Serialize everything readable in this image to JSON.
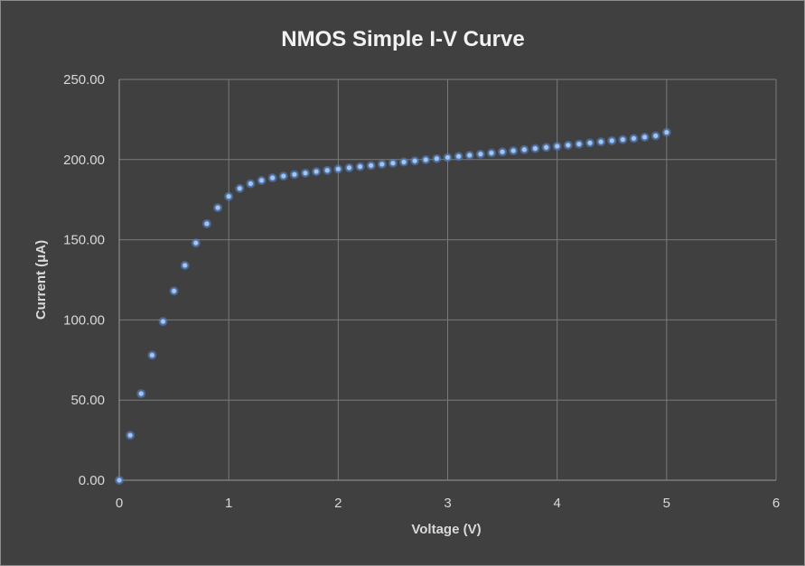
{
  "chart_data": {
    "type": "scatter",
    "title": "NMOS Simple I-V Curve",
    "xlabel": "Voltage (V)",
    "ylabel": "Current (μA)",
    "xlim": [
      0,
      6
    ],
    "ylim": [
      0,
      250
    ],
    "x_ticks": [
      "0",
      "1",
      "2",
      "3",
      "4",
      "5",
      "6"
    ],
    "y_ticks": [
      "0.00",
      "50.00",
      "100.00",
      "150.00",
      "200.00",
      "250.00"
    ],
    "grid": true,
    "legend": "none",
    "marker_color": "#a8c4ea",
    "marker_edge_color": "#4f81bd",
    "series": [
      {
        "x": [
          0,
          0.1,
          0.2,
          0.3,
          0.4,
          0.5,
          0.6,
          0.7,
          0.8,
          0.9,
          1.0,
          1.1,
          1.2,
          1.3,
          1.4,
          1.5,
          1.6,
          1.7,
          1.8,
          1.9,
          2.0,
          2.1,
          2.2,
          2.3,
          2.4,
          2.5,
          2.6,
          2.7,
          2.8,
          2.9,
          3.0,
          3.1,
          3.2,
          3.3,
          3.4,
          3.5,
          3.6,
          3.7,
          3.8,
          3.9,
          4.0,
          4.1,
          4.2,
          4.3,
          4.4,
          4.5,
          4.6,
          4.7,
          4.8,
          4.9,
          5.0
        ],
        "y": [
          0,
          28,
          54,
          78,
          99,
          118,
          134,
          148,
          160,
          170,
          177,
          182,
          185,
          187,
          188.6,
          189.7,
          190.7,
          191.6,
          192.5,
          193.3,
          194.1,
          194.9,
          195.6,
          196.3,
          197.1,
          197.8,
          198.5,
          199.2,
          199.9,
          200.6,
          201.3,
          202.0,
          202.7,
          203.4,
          204.1,
          204.8,
          205.5,
          206.2,
          206.9,
          207.6,
          208.3,
          209.0,
          209.7,
          210.4,
          211.1,
          211.8,
          212.5,
          213.2,
          214.0,
          214.8,
          217
        ]
      }
    ]
  }
}
